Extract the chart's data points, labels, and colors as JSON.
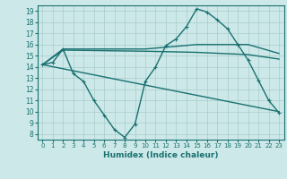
{
  "xlabel": "Humidex (Indice chaleur)",
  "bg_color": "#cce8e8",
  "grid_color": "#aacccc",
  "line_color": "#1a7070",
  "xlim": [
    -0.5,
    23.5
  ],
  "ylim": [
    7.5,
    19.5
  ],
  "yticks": [
    8,
    9,
    10,
    11,
    12,
    13,
    14,
    15,
    16,
    17,
    18,
    19
  ],
  "xticks": [
    0,
    1,
    2,
    3,
    4,
    5,
    6,
    7,
    8,
    9,
    10,
    11,
    12,
    13,
    14,
    15,
    16,
    17,
    18,
    19,
    20,
    21,
    22,
    23
  ],
  "series": [
    {
      "x": [
        0,
        1,
        2,
        3,
        4,
        5,
        6,
        7,
        8,
        9,
        10,
        11,
        12,
        13,
        14,
        15,
        16,
        17,
        18,
        19,
        20,
        21,
        22,
        23
      ],
      "y": [
        14.2,
        14.4,
        15.6,
        13.4,
        12.7,
        11.0,
        9.7,
        8.4,
        7.7,
        8.9,
        12.7,
        14.0,
        15.9,
        16.5,
        17.6,
        19.2,
        18.9,
        18.2,
        17.4,
        16.0,
        14.6,
        12.8,
        11.0,
        9.9
      ],
      "marker": "+",
      "lw": 1.0
    },
    {
      "x": [
        0,
        2,
        10,
        15,
        20,
        23
      ],
      "y": [
        14.2,
        15.6,
        15.6,
        16.0,
        16.0,
        15.2
      ],
      "marker": null,
      "lw": 1.0
    },
    {
      "x": [
        0,
        2,
        10,
        15,
        20,
        23
      ],
      "y": [
        14.2,
        15.5,
        15.4,
        15.3,
        15.1,
        14.7
      ],
      "marker": null,
      "lw": 1.0
    },
    {
      "x": [
        0,
        23
      ],
      "y": [
        14.2,
        10.0
      ],
      "marker": null,
      "lw": 1.0
    }
  ]
}
